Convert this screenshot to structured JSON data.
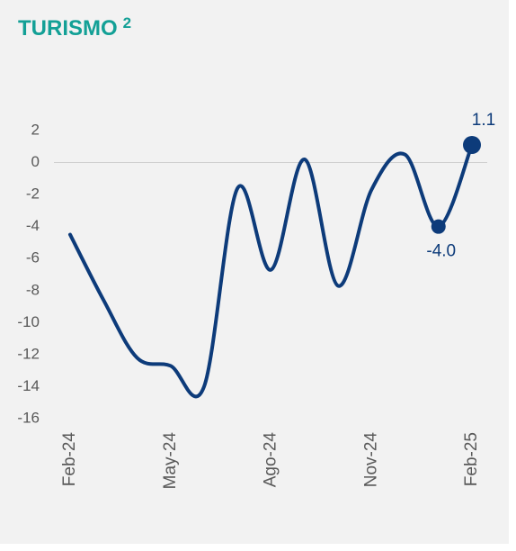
{
  "chart_data": {
    "type": "line",
    "title": "TURISMO",
    "title_note": "2",
    "categories": [
      "Feb-24",
      null,
      null,
      "May-24",
      null,
      null,
      "Ago-24",
      null,
      null,
      "Nov-24",
      null,
      null,
      "Feb-25"
    ],
    "series": [
      {
        "name": "Turismo",
        "color": "#0d3b7a",
        "values": [
          -4.5,
          -8.6,
          -12.2,
          -12.7,
          -14.0,
          -1.6,
          -6.7,
          0.2,
          -7.7,
          -1.7,
          0.5,
          -4.0,
          1.1
        ],
        "value_labels": [
          null,
          null,
          null,
          null,
          null,
          null,
          null,
          null,
          null,
          null,
          null,
          "-4.0",
          "1.1"
        ]
      }
    ],
    "ylim": [
      -16,
      2
    ],
    "yticks": [
      2,
      0,
      -2,
      -4,
      -6,
      -8,
      -10,
      -12,
      -14,
      -16
    ],
    "grid": false,
    "title_color": "#13a096"
  }
}
